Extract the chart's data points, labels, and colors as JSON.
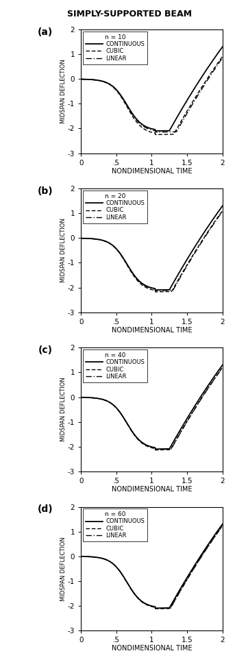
{
  "title": "SIMPLY-SUPPORTED BEAM",
  "panels": [
    {
      "label": "a",
      "n": 10
    },
    {
      "label": "b",
      "n": 20
    },
    {
      "label": "c",
      "n": 40
    },
    {
      "label": "d",
      "n": 60
    }
  ],
  "xlabel": "NONDIMENSIONAL TIME",
  "ylabel": "MIDSPAN DEFLECTION",
  "xlim": [
    0,
    2
  ],
  "ylim": [
    -3,
    2
  ],
  "xticks": [
    0,
    0.5,
    1.0,
    1.5,
    2.0
  ],
  "xticklabels": [
    "0",
    ".5",
    "1",
    "1.5",
    "2"
  ],
  "yticks": [
    -3,
    -2,
    -1,
    0,
    1,
    2
  ],
  "background_color": "white"
}
